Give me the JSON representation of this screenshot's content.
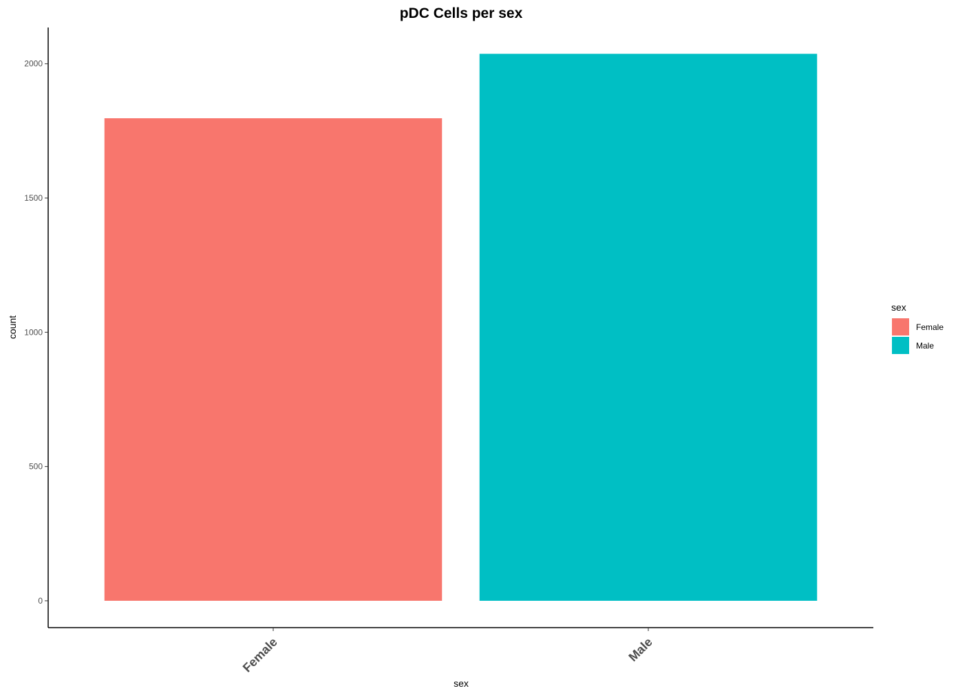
{
  "chart_data": {
    "type": "bar",
    "title": "pDC Cells per sex",
    "xlabel": "sex",
    "ylabel": "count",
    "categories": [
      "Female",
      "Male"
    ],
    "values": [
      1797,
      2037
    ],
    "colors": [
      "#F8766D",
      "#00BFC4"
    ],
    "ylim": [
      -100,
      2135
    ],
    "yticks": [
      0,
      500,
      1000,
      1500,
      2000
    ],
    "ytick_labels": [
      "0",
      "500",
      "1000",
      "1500",
      "2000"
    ],
    "grid": false,
    "legend": {
      "title": "sex",
      "placement": "right",
      "entries": [
        "Female",
        "Male"
      ]
    }
  }
}
